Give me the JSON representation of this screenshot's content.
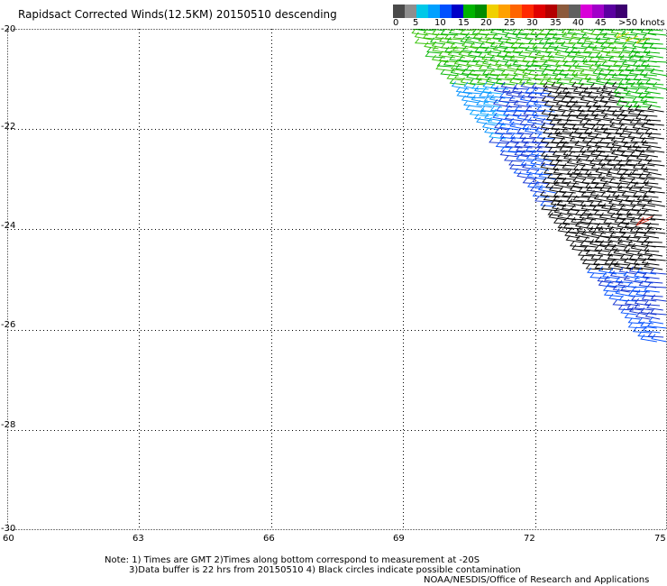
{
  "title": "Rapidsact Corrected Winds(12.5KM) 20150510 descending",
  "legend": {
    "swatches": [
      "#4a4a4a",
      "#8e8e8e",
      "#00c8e8",
      "#00a0ff",
      "#0050ff",
      "#0000c8",
      "#00b400",
      "#008c00",
      "#f0d000",
      "#ffa000",
      "#ff6400",
      "#ff2800",
      "#e00000",
      "#b40000",
      "#8b5a3c",
      "#606060",
      "#d800d8",
      "#a000c8",
      "#5a00a0",
      "#3c0070"
    ],
    "labels": [
      "0",
      "5",
      "10",
      "15",
      "20",
      "25",
      "30",
      "35",
      "40",
      "45",
      ">50 knots"
    ]
  },
  "axes": {
    "y_ticks": [
      "-20",
      "-22",
      "-24",
      "-26",
      "-28",
      "-30"
    ],
    "x_ticks": [
      "60",
      "63",
      "66",
      "69",
      "72",
      "75"
    ]
  },
  "notes": {
    "line1": "Note: 1) Times are GMT 2)Times along bottom correspond to measurement at -20S",
    "line2": "3)Data buffer is 22 hrs from 20150510 4) Black circles indicate possible contamination",
    "line3": "NOAA/NESDIS/Office of Research and Applications"
  },
  "map": {
    "lon_range": [
      60,
      75
    ],
    "lat_range": [
      -20,
      -30
    ],
    "swath": "descending pass over the eastern part of the map, covering the triangular area from 69.5E/-20S to 75E/-26.5S"
  }
}
